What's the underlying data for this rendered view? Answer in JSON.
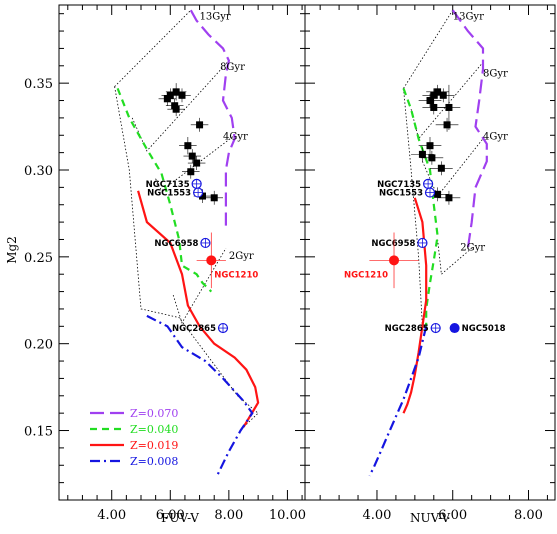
{
  "chart_data": {
    "type": "scatter",
    "ylabel": "Mg2",
    "ylim": [
      0.11,
      0.395
    ],
    "yticks": [
      "0.15",
      "0.20",
      "0.25",
      "0.30",
      "0.35"
    ],
    "legend": {
      "placement": "bottom-left",
      "entries": [
        {
          "label": "Z=0.070",
          "color": "#a040f0",
          "dash": "dash"
        },
        {
          "label": "Z=0.040",
          "color": "#22dd22",
          "dash": "shortdash"
        },
        {
          "label": "Z=0.019",
          "color": "#ff1414",
          "dash": "solid"
        },
        {
          "label": "Z=0.008",
          "color": "#1515e0",
          "dash": "dashdot"
        }
      ]
    },
    "panels": [
      {
        "xlabel": "FUV-V",
        "xlim": [
          2.2,
          10.6
        ],
        "xticks": [
          "4.00",
          "6.00",
          "8.00",
          "10.00"
        ],
        "tracks": [
          {
            "name": "Z=0.070",
            "points": [
              [
                6.7,
                0.392
              ],
              [
                6.9,
                0.386
              ],
              [
                7.3,
                0.378
              ],
              [
                7.8,
                0.37
              ],
              [
                8.0,
                0.363
              ],
              [
                7.9,
                0.355
              ],
              [
                7.8,
                0.34
              ],
              [
                8.1,
                0.33
              ],
              [
                8.2,
                0.318
              ],
              [
                8.0,
                0.31
              ],
              [
                7.9,
                0.3
              ],
              [
                7.9,
                0.28
              ],
              [
                7.9,
                0.268
              ]
            ]
          },
          {
            "name": "Z=0.040",
            "points": [
              [
                4.2,
                0.347
              ],
              [
                4.6,
                0.33
              ],
              [
                5.2,
                0.312
              ],
              [
                5.7,
                0.298
              ],
              [
                6.0,
                0.28
              ],
              [
                6.3,
                0.26
              ],
              [
                6.4,
                0.245
              ],
              [
                6.9,
                0.24
              ],
              [
                7.1,
                0.235
              ],
              [
                7.4,
                0.23
              ]
            ]
          },
          {
            "name": "Z=0.019",
            "points": [
              [
                4.9,
                0.288
              ],
              [
                5.2,
                0.27
              ],
              [
                6.0,
                0.258
              ],
              [
                6.4,
                0.24
              ],
              [
                6.6,
                0.222
              ],
              [
                7.0,
                0.21
              ],
              [
                7.5,
                0.2
              ],
              [
                8.2,
                0.192
              ],
              [
                8.6,
                0.185
              ],
              [
                8.9,
                0.175
              ],
              [
                9.0,
                0.166
              ],
              [
                8.5,
                0.152
              ]
            ]
          },
          {
            "name": "Z=0.008",
            "points": [
              [
                5.2,
                0.216
              ],
              [
                5.9,
                0.21
              ],
              [
                6.4,
                0.198
              ],
              [
                7.2,
                0.19
              ],
              [
                7.8,
                0.18
              ],
              [
                8.5,
                0.167
              ],
              [
                8.8,
                0.16
              ],
              [
                8.4,
                0.15
              ],
              [
                8.0,
                0.138
              ],
              [
                7.6,
                0.124
              ]
            ]
          }
        ],
        "isochrones": [
          {
            "label": "13Gyr",
            "points": [
              [
                4.1,
                0.348
              ],
              [
                6.7,
                0.392
              ]
            ]
          },
          {
            "label": "8Gyr",
            "points": [
              [
                4.7,
                0.33
              ],
              [
                5.2,
                0.311
              ],
              [
                8.0,
                0.363
              ]
            ]
          },
          {
            "label": "4Gyr",
            "points": [
              [
                5.5,
                0.295
              ],
              [
                5.7,
                0.288
              ],
              [
                8.2,
                0.32
              ]
            ]
          },
          {
            "label": "2Gyr",
            "points": [
              [
                6.1,
                0.228
              ],
              [
                6.4,
                0.212
              ],
              [
                7.9,
                0.255
              ]
            ]
          }
        ],
        "isochrone_labels": [
          {
            "text": "13Gyr",
            "x": 7.0,
            "y": 0.389
          },
          {
            "text": "8Gyr",
            "x": 7.7,
            "y": 0.36
          },
          {
            "text": "4Gyr",
            "x": 7.8,
            "y": 0.32
          },
          {
            "text": "2Gyr",
            "x": 8.0,
            "y": 0.251
          }
        ],
        "boundary": [
          [
            4.1,
            0.348
          ],
          [
            4.6,
            0.3
          ],
          [
            5.0,
            0.22
          ],
          [
            6.3,
            0.215
          ],
          [
            8.3,
            0.17
          ],
          [
            9.0,
            0.16
          ],
          [
            8.5,
            0.152
          ]
        ],
        "sample": [
          {
            "x": 6.2,
            "y": 0.345,
            "ex": 0.35,
            "ey": 0.005
          },
          {
            "x": 6.0,
            "y": 0.343,
            "ex": 0.3,
            "ey": 0.004
          },
          {
            "x": 6.4,
            "y": 0.343,
            "ex": 0.3,
            "ey": 0.004
          },
          {
            "x": 5.9,
            "y": 0.341,
            "ex": 0.3,
            "ey": 0.004
          },
          {
            "x": 6.15,
            "y": 0.337,
            "ex": 0.3,
            "ey": 0.004
          },
          {
            "x": 6.2,
            "y": 0.335,
            "ex": 0.3,
            "ey": 0.004
          },
          {
            "x": 7.0,
            "y": 0.326,
            "ex": 0.3,
            "ey": 0.004
          },
          {
            "x": 6.6,
            "y": 0.314,
            "ex": 0.3,
            "ey": 0.005
          },
          {
            "x": 6.75,
            "y": 0.308,
            "ex": 0.3,
            "ey": 0.004
          },
          {
            "x": 6.9,
            "y": 0.304,
            "ex": 0.3,
            "ey": 0.004
          },
          {
            "x": 6.7,
            "y": 0.299,
            "ex": 0.3,
            "ey": 0.004
          },
          {
            "x": 7.1,
            "y": 0.285,
            "ex": 0.3,
            "ey": 0.004
          },
          {
            "x": 7.5,
            "y": 0.284,
            "ex": 0.3,
            "ey": 0.004
          }
        ],
        "named": [
          {
            "name": "NGC7135",
            "x": 6.9,
            "y": 0.292,
            "style": "open",
            "color": "#1515e0",
            "label_color": "#000000",
            "side": "left"
          },
          {
            "name": "NGC1553",
            "x": 6.95,
            "y": 0.287,
            "style": "open",
            "color": "#1515e0",
            "label_color": "#000000",
            "side": "left"
          },
          {
            "name": "NGC6958",
            "x": 7.2,
            "y": 0.258,
            "style": "open",
            "color": "#1515e0",
            "label_color": "#000000",
            "side": "left"
          },
          {
            "name": "NGC1210",
            "x": 7.4,
            "y": 0.248,
            "style": "filled",
            "color": "#ff1414",
            "label_color": "#ff1414",
            "side": "below-right",
            "ex": 0.5,
            "ey": 0.016
          },
          {
            "name": "NGC2865",
            "x": 7.8,
            "y": 0.209,
            "style": "open",
            "color": "#1515e0",
            "label_color": "#000000",
            "side": "left"
          }
        ]
      },
      {
        "xlabel": "NUV-V",
        "xlim": [
          2.1,
          8.7
        ],
        "xticks": [
          "4.00",
          "6.00",
          "8.00"
        ],
        "tracks": [
          {
            "name": "Z=0.070",
            "points": [
              [
                6.0,
                0.392
              ],
              [
                6.2,
                0.386
              ],
              [
                6.4,
                0.38
              ],
              [
                6.8,
                0.37
              ],
              [
                6.8,
                0.358
              ],
              [
                6.7,
                0.34
              ],
              [
                6.6,
                0.325
              ],
              [
                6.9,
                0.315
              ],
              [
                6.9,
                0.305
              ],
              [
                6.6,
                0.29
              ],
              [
                6.5,
                0.27
              ],
              [
                6.4,
                0.255
              ]
            ]
          },
          {
            "name": "Z=0.040",
            "points": [
              [
                4.7,
                0.347
              ],
              [
                4.9,
                0.335
              ],
              [
                5.1,
                0.318
              ],
              [
                5.4,
                0.3
              ],
              [
                5.5,
                0.28
              ],
              [
                5.6,
                0.262
              ],
              [
                5.5,
                0.248
              ],
              [
                5.4,
                0.235
              ],
              [
                5.3,
                0.22
              ],
              [
                5.3,
                0.21
              ]
            ]
          },
          {
            "name": "Z=0.019",
            "points": [
              [
                5.0,
                0.284
              ],
              [
                5.2,
                0.27
              ],
              [
                5.3,
                0.245
              ],
              [
                5.3,
                0.225
              ],
              [
                5.2,
                0.21
              ],
              [
                5.1,
                0.195
              ],
              [
                5.0,
                0.182
              ],
              [
                4.9,
                0.172
              ],
              [
                4.8,
                0.165
              ],
              [
                4.7,
                0.16
              ]
            ]
          },
          {
            "name": "Z=0.008",
            "points": [
              [
                5.3,
                0.21
              ],
              [
                5.1,
                0.192
              ],
              [
                4.9,
                0.18
              ],
              [
                4.7,
                0.168
              ],
              [
                4.5,
                0.158
              ],
              [
                4.3,
                0.148
              ],
              [
                4.1,
                0.138
              ],
              [
                3.9,
                0.128
              ],
              [
                3.8,
                0.124
              ]
            ]
          }
        ],
        "isochrones": [
          {
            "label": "13Gyr",
            "points": [
              [
                4.7,
                0.347
              ],
              [
                6.0,
                0.392
              ]
            ]
          },
          {
            "label": "8Gyr",
            "points": [
              [
                4.9,
                0.335
              ],
              [
                5.1,
                0.318
              ],
              [
                6.8,
                0.362
              ]
            ]
          },
          {
            "label": "4Gyr",
            "points": [
              [
                5.2,
                0.305
              ],
              [
                5.6,
                0.285
              ],
              [
                6.8,
                0.318
              ]
            ]
          },
          {
            "label": "2Gyr",
            "points": [
              [
                5.6,
                0.26
              ],
              [
                5.7,
                0.24
              ],
              [
                6.5,
                0.255
              ]
            ]
          }
        ],
        "isochrone_labels": [
          {
            "text": "13Gyr",
            "x": 6.0,
            "y": 0.389
          },
          {
            "text": "8Gyr",
            "x": 6.8,
            "y": 0.356
          },
          {
            "text": "4Gyr",
            "x": 6.8,
            "y": 0.32
          },
          {
            "text": "2Gyr",
            "x": 6.2,
            "y": 0.256
          }
        ],
        "boundary": [
          [
            4.7,
            0.347
          ],
          [
            4.9,
            0.3
          ],
          [
            5.1,
            0.25
          ],
          [
            5.2,
            0.21
          ],
          [
            5.1,
            0.195
          ]
        ],
        "sample": [
          {
            "x": 5.6,
            "y": 0.345,
            "ex": 0.3,
            "ey": 0.004
          },
          {
            "x": 5.5,
            "y": 0.343,
            "ex": 0.3,
            "ey": 0.004
          },
          {
            "x": 5.75,
            "y": 0.343,
            "ex": 0.3,
            "ey": 0.004
          },
          {
            "x": 5.4,
            "y": 0.34,
            "ex": 0.3,
            "ey": 0.004
          },
          {
            "x": 5.5,
            "y": 0.336,
            "ex": 0.3,
            "ey": 0.004
          },
          {
            "x": 5.9,
            "y": 0.336,
            "ex": 0.3,
            "ey": 0.013
          },
          {
            "x": 5.85,
            "y": 0.326,
            "ex": 0.3,
            "ey": 0.004
          },
          {
            "x": 5.4,
            "y": 0.314,
            "ex": 0.3,
            "ey": 0.005
          },
          {
            "x": 5.2,
            "y": 0.309,
            "ex": 0.3,
            "ey": 0.004
          },
          {
            "x": 5.45,
            "y": 0.307,
            "ex": 0.3,
            "ey": 0.004
          },
          {
            "x": 5.7,
            "y": 0.301,
            "ex": 0.3,
            "ey": 0.004
          },
          {
            "x": 5.6,
            "y": 0.286,
            "ex": 0.3,
            "ey": 0.004
          },
          {
            "x": 5.9,
            "y": 0.284,
            "ex": 0.3,
            "ey": 0.004
          }
        ],
        "named": [
          {
            "name": "NGC7135",
            "x": 5.35,
            "y": 0.292,
            "style": "open",
            "color": "#1515e0",
            "label_color": "#000000",
            "side": "left"
          },
          {
            "name": "NGC1553",
            "x": 5.4,
            "y": 0.287,
            "style": "open",
            "color": "#1515e0",
            "label_color": "#000000",
            "side": "left"
          },
          {
            "name": "NGC6958",
            "x": 5.2,
            "y": 0.258,
            "style": "open",
            "color": "#1515e0",
            "label_color": "#000000",
            "side": "left"
          },
          {
            "name": "NGC1210",
            "x": 4.45,
            "y": 0.248,
            "style": "filled",
            "color": "#ff1414",
            "label_color": "#ff1414",
            "side": "below-left",
            "ex": 0.65,
            "ey": 0.016
          },
          {
            "name": "NGC2865",
            "x": 5.55,
            "y": 0.209,
            "style": "open",
            "color": "#1515e0",
            "label_color": "#000000",
            "side": "left"
          },
          {
            "name": "NGC5018",
            "x": 6.05,
            "y": 0.209,
            "style": "filled",
            "color": "#1515e0",
            "label_color": "#000000",
            "side": "right"
          }
        ]
      }
    ]
  }
}
